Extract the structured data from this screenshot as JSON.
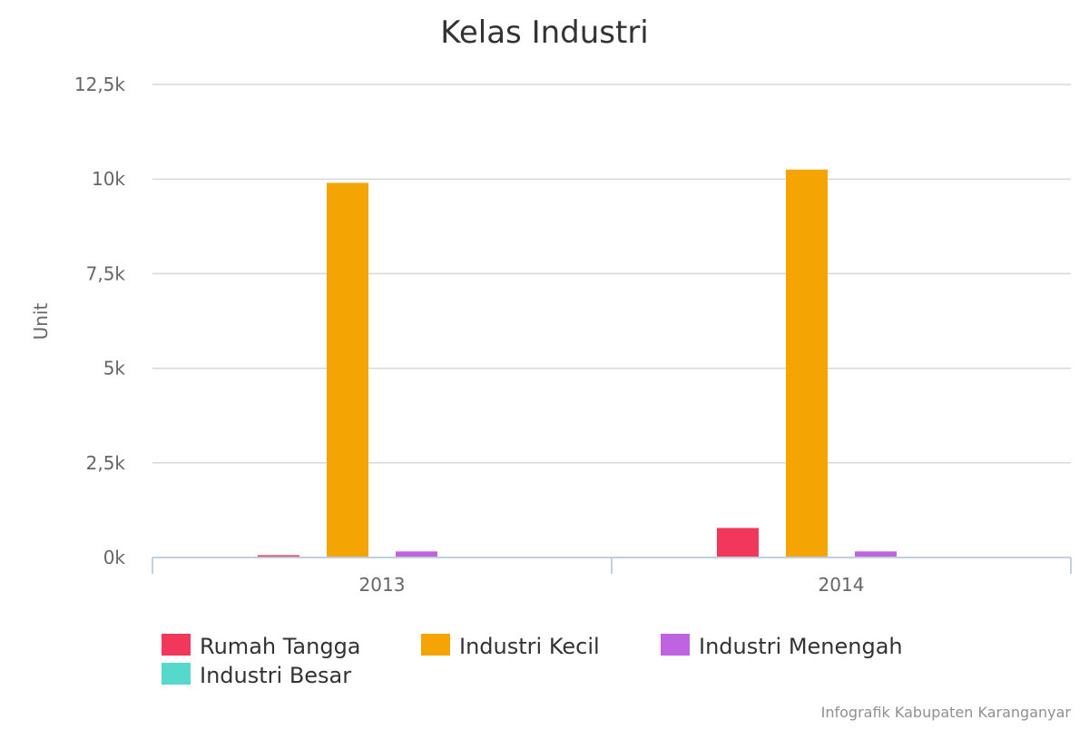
{
  "chart_data": {
    "type": "bar",
    "title": "Kelas Industri",
    "xlabel": "",
    "ylabel": "Unit",
    "categories": [
      "2013",
      "2014"
    ],
    "ylim": [
      0,
      12500
    ],
    "yticks": [
      0,
      2500,
      5000,
      7500,
      10000,
      12500
    ],
    "ytick_labels": [
      "0k",
      "2,5k",
      "5k",
      "7,5k",
      "10k",
      "12,5k"
    ],
    "grid": true,
    "legend_position": "bottom",
    "series": [
      {
        "name": "Rumah Tangga",
        "color": "#f2385a",
        "values": [
          60,
          780
        ]
      },
      {
        "name": "Industri Kecil",
        "color": "#f5a503",
        "values": [
          9900,
          10250
        ]
      },
      {
        "name": "Industri Menengah",
        "color": "#c063e0",
        "values": [
          160,
          160
        ]
      },
      {
        "name": "Industri Besar",
        "color": "#56d9cd",
        "values": [
          0,
          0
        ]
      }
    ],
    "credit": "Infografik Kabupaten Karanganyar"
  }
}
